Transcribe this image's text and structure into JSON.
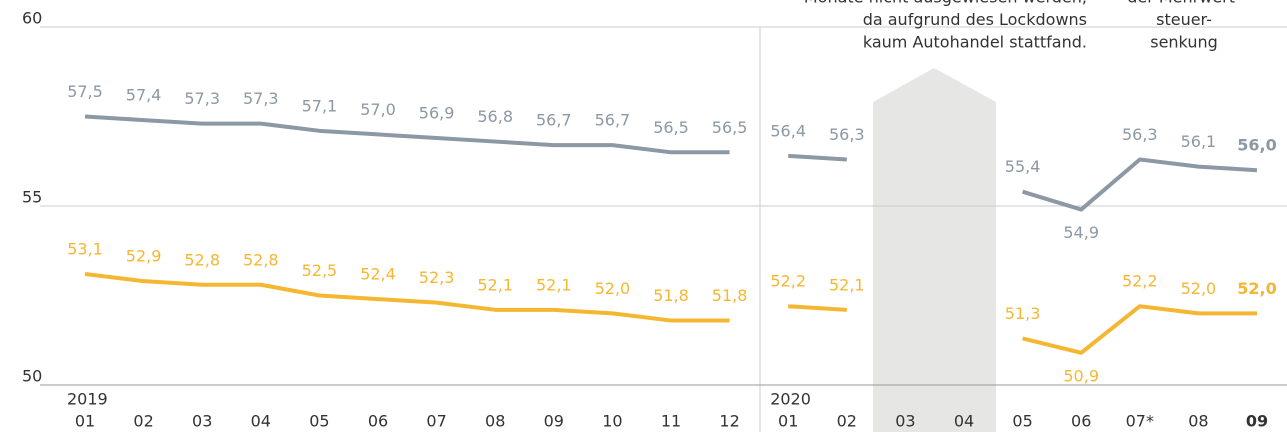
{
  "chart_data": {
    "type": "line",
    "categories": [
      "01",
      "02",
      "03",
      "04",
      "05",
      "06",
      "07",
      "08",
      "09",
      "10",
      "11",
      "12",
      "01",
      "02",
      "03",
      "04",
      "05",
      "06",
      "07*",
      "08",
      "09"
    ],
    "years": [
      "2019",
      "2020"
    ],
    "series": [
      {
        "name": "grau",
        "color": "#8c98a4",
        "values": [
          57.5,
          57.4,
          57.3,
          57.3,
          57.1,
          57.0,
          56.9,
          56.8,
          56.7,
          56.7,
          56.5,
          56.5,
          56.4,
          56.3,
          null,
          null,
          55.4,
          54.9,
          56.3,
          56.1,
          56.0
        ],
        "value_labels": [
          "57,5",
          "57,4",
          "57,3",
          "57,3",
          "57,1",
          "57,0",
          "56,9",
          "56,8",
          "56,7",
          "56,7",
          "56,5",
          "56,5",
          "56,4",
          "56,3",
          null,
          null,
          "55,4",
          "54,9",
          "56,3",
          "56,1",
          "56,0"
        ]
      },
      {
        "name": "gelb",
        "color": "#f5b731",
        "values": [
          53.1,
          52.9,
          52.8,
          52.8,
          52.5,
          52.4,
          52.3,
          52.1,
          52.1,
          52.0,
          51.8,
          51.8,
          52.2,
          52.1,
          null,
          null,
          51.3,
          50.9,
          52.2,
          52.0,
          52.0
        ],
        "value_labels": [
          "53,1",
          "52,9",
          "52,8",
          "52,8",
          "52,5",
          "52,4",
          "52,3",
          "52,1",
          "52,1",
          "52,0",
          "51,8",
          "51,8",
          "52,2",
          "52,1",
          null,
          null,
          "51,3",
          "50,9",
          "52,2",
          "52,0",
          "52,0"
        ]
      }
    ],
    "annotations": [
      [
        "Monate nicht ausgewiesen werden,",
        "da aufgrund des Lockdowns",
        "kaum Autohandel stattfand."
      ],
      [
        "der Mehrwert-",
        "steuer-",
        "senkung"
      ]
    ],
    "ylim": [
      50,
      60
    ],
    "yticks": [
      50,
      55,
      60
    ],
    "grid": true
  }
}
